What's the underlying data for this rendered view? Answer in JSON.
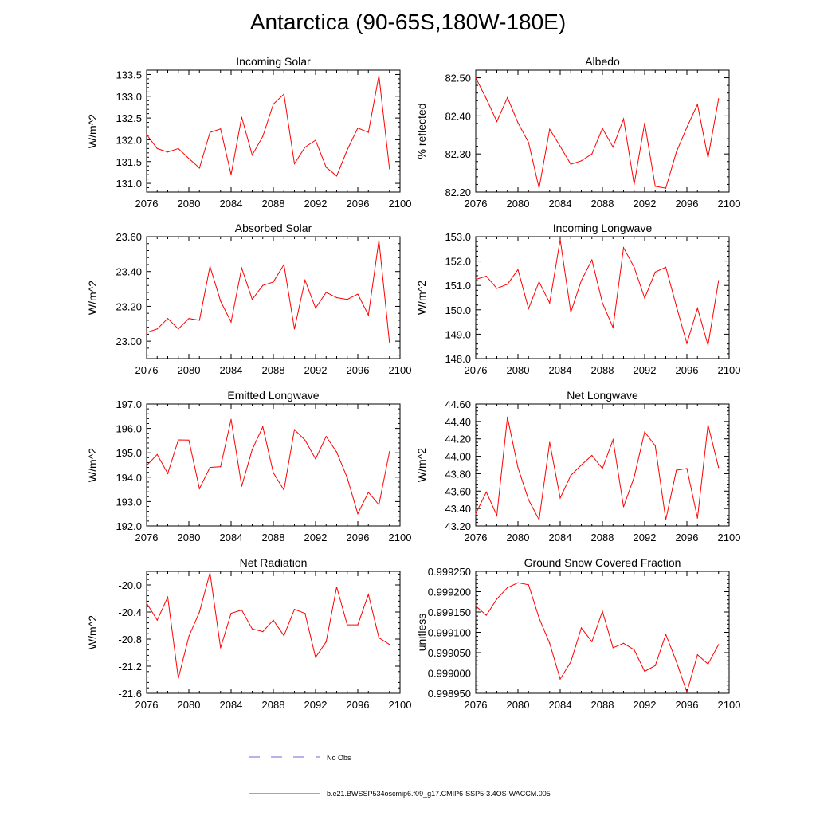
{
  "title": "Antarctica (90-65S,180W-180E)",
  "colors": {
    "model": "#ff0000",
    "obs": "#6a6ad0",
    "axis": "#000000"
  },
  "legend": {
    "obs_label": "No Obs",
    "model_label": "b.e21.BWSSP534oscmip6.f09_g17.CMIP6-SSP5-3.4OS-WACCM.005"
  },
  "chart_data": [
    {
      "type": "line",
      "title": "Incoming Solar",
      "ylabel": "W/m^2",
      "xlim": [
        2076,
        2100
      ],
      "ylim": [
        130.8,
        133.6
      ],
      "xticks": [
        "2076",
        "2080",
        "2084",
        "2088",
        "2092",
        "2096",
        "2100"
      ],
      "yticks": [
        "131.0",
        "131.5",
        "132.0",
        "132.5",
        "133.0",
        "133.5"
      ],
      "x": [
        2076,
        2077,
        2078,
        2079,
        2080,
        2081,
        2082,
        2083,
        2084,
        2085,
        2086,
        2087,
        2088,
        2089,
        2090,
        2091,
        2092,
        2093,
        2094,
        2095,
        2096,
        2097,
        2098,
        2099
      ],
      "series": [
        {
          "name": "b.e21.BWSSP534oscmip6.f09_g17.CMIP6-SSP5-3.4OS-WACCM.005",
          "values": [
            132.12,
            131.8,
            131.72,
            131.8,
            131.57,
            131.35,
            132.17,
            132.25,
            131.2,
            132.52,
            131.65,
            132.08,
            132.82,
            133.05,
            131.45,
            131.83,
            131.99,
            131.37,
            131.17,
            131.77,
            132.27,
            132.17,
            133.48,
            131.33
          ]
        }
      ]
    },
    {
      "type": "line",
      "title": "Albedo",
      "ylabel": "% reflected",
      "xlim": [
        2076,
        2100
      ],
      "ylim": [
        82.2,
        82.52
      ],
      "xticks": [
        "2076",
        "2080",
        "2084",
        "2088",
        "2092",
        "2096",
        "2100"
      ],
      "yticks": [
        "82.20",
        "82.30",
        "82.40",
        "82.50"
      ],
      "x": [
        2076,
        2077,
        2078,
        2079,
        2080,
        2081,
        2082,
        2083,
        2084,
        2085,
        2086,
        2087,
        2088,
        2089,
        2090,
        2091,
        2092,
        2093,
        2094,
        2095,
        2096,
        2097,
        2098,
        2099
      ],
      "series": [
        {
          "name": "b.e21.BWSSP534oscmip6.f09_g17.CMIP6-SSP5-3.4OS-WACCM.005",
          "values": [
            82.5,
            82.445,
            82.385,
            82.448,
            82.382,
            82.33,
            82.21,
            82.365,
            82.32,
            82.273,
            82.282,
            82.3,
            82.367,
            82.318,
            82.392,
            82.22,
            82.381,
            82.215,
            82.21,
            82.305,
            82.37,
            82.43,
            82.29,
            82.445
          ]
        }
      ]
    },
    {
      "type": "line",
      "title": "Absorbed Solar",
      "ylabel": "W/m^2",
      "xlim": [
        2076,
        2100
      ],
      "ylim": [
        22.9,
        23.6
      ],
      "xticks": [
        "2076",
        "2080",
        "2084",
        "2088",
        "2092",
        "2096",
        "2100"
      ],
      "yticks": [
        "23.00",
        "23.20",
        "23.40",
        "23.60"
      ],
      "x": [
        2076,
        2077,
        2078,
        2079,
        2080,
        2081,
        2082,
        2083,
        2084,
        2085,
        2086,
        2087,
        2088,
        2089,
        2090,
        2091,
        2092,
        2093,
        2094,
        2095,
        2096,
        2097,
        2098,
        2099
      ],
      "series": [
        {
          "name": "b.e21.BWSSP534oscmip6.f09_g17.CMIP6-SSP5-3.4OS-WACCM.005",
          "values": [
            23.05,
            23.07,
            23.13,
            23.07,
            23.13,
            23.12,
            23.43,
            23.23,
            23.11,
            23.42,
            23.24,
            23.32,
            23.34,
            23.44,
            23.07,
            23.35,
            23.19,
            23.28,
            23.25,
            23.24,
            23.27,
            23.15,
            23.58,
            22.99
          ]
        }
      ]
    },
    {
      "type": "line",
      "title": "Incoming Longwave",
      "ylabel": "W/m^2",
      "xlim": [
        2076,
        2100
      ],
      "ylim": [
        148.0,
        153.0
      ],
      "xticks": [
        "2076",
        "2080",
        "2084",
        "2088",
        "2092",
        "2096",
        "2100"
      ],
      "yticks": [
        "148.0",
        "149.0",
        "150.0",
        "151.0",
        "152.0",
        "153.0"
      ],
      "x": [
        2076,
        2077,
        2078,
        2079,
        2080,
        2081,
        2082,
        2083,
        2084,
        2085,
        2086,
        2087,
        2088,
        2089,
        2090,
        2091,
        2092,
        2093,
        2094,
        2095,
        2096,
        2097,
        2098,
        2099
      ],
      "series": [
        {
          "name": "b.e21.BWSSP534oscmip6.f09_g17.CMIP6-SSP5-3.4OS-WACCM.005",
          "values": [
            151.25,
            151.38,
            150.88,
            151.05,
            151.65,
            150.05,
            151.15,
            150.28,
            152.88,
            149.9,
            151.2,
            152.05,
            150.28,
            149.27,
            152.55,
            151.75,
            150.48,
            151.55,
            151.75,
            150.15,
            148.62,
            150.07,
            148.55,
            151.2
          ]
        }
      ]
    },
    {
      "type": "line",
      "title": "Emitted Longwave",
      "ylabel": "W/m^2",
      "xlim": [
        2076,
        2100
      ],
      "ylim": [
        192.0,
        197.0
      ],
      "xticks": [
        "2076",
        "2080",
        "2084",
        "2088",
        "2092",
        "2096",
        "2100"
      ],
      "yticks": [
        "192.0",
        "193.0",
        "194.0",
        "195.0",
        "196.0",
        "197.0"
      ],
      "x": [
        2076,
        2077,
        2078,
        2079,
        2080,
        2081,
        2082,
        2083,
        2084,
        2085,
        2086,
        2087,
        2088,
        2089,
        2090,
        2091,
        2092,
        2093,
        2094,
        2095,
        2096,
        2097,
        2098,
        2099
      ],
      "series": [
        {
          "name": "b.e21.BWSSP534oscmip6.f09_g17.CMIP6-SSP5-3.4OS-WACCM.005",
          "values": [
            194.48,
            194.93,
            194.15,
            195.53,
            195.52,
            193.53,
            194.4,
            194.43,
            196.37,
            193.63,
            195.13,
            196.07,
            194.18,
            193.47,
            195.95,
            195.52,
            194.75,
            195.67,
            195.03,
            193.97,
            192.5,
            193.38,
            192.87,
            195.05
          ]
        }
      ]
    },
    {
      "type": "line",
      "title": "Net Longwave",
      "ylabel": "W/m^2",
      "xlim": [
        2076,
        2100
      ],
      "ylim": [
        43.2,
        44.6
      ],
      "xticks": [
        "2076",
        "2080",
        "2084",
        "2088",
        "2092",
        "2096",
        "2100"
      ],
      "yticks": [
        "43.20",
        "43.40",
        "43.60",
        "43.80",
        "44.00",
        "44.20",
        "44.40",
        "44.60"
      ],
      "x": [
        2076,
        2077,
        2078,
        2079,
        2080,
        2081,
        2082,
        2083,
        2084,
        2085,
        2086,
        2087,
        2088,
        2089,
        2090,
        2091,
        2092,
        2093,
        2094,
        2095,
        2096,
        2097,
        2098,
        2099
      ],
      "series": [
        {
          "name": "b.e21.BWSSP534oscmip6.f09_g17.CMIP6-SSP5-3.4OS-WACCM.005",
          "values": [
            43.34,
            43.59,
            43.32,
            44.45,
            43.87,
            43.5,
            43.27,
            44.16,
            43.52,
            43.78,
            43.9,
            44.01,
            43.86,
            44.19,
            43.42,
            43.76,
            44.28,
            44.12,
            43.27,
            43.84,
            43.86,
            43.29,
            44.36,
            43.87
          ]
        }
      ]
    },
    {
      "type": "line",
      "title": "Net Radiation",
      "ylabel": "W/m^2",
      "xlim": [
        2076,
        2100
      ],
      "ylim": [
        -21.6,
        -19.8
      ],
      "xticks": [
        "2076",
        "2080",
        "2084",
        "2088",
        "2092",
        "2096",
        "2100"
      ],
      "yticks": [
        "-21.6",
        "-21.2",
        "-20.8",
        "-20.4",
        "-20.0"
      ],
      "x": [
        2076,
        2077,
        2078,
        2079,
        2080,
        2081,
        2082,
        2083,
        2084,
        2085,
        2086,
        2087,
        2088,
        2089,
        2090,
        2091,
        2092,
        2093,
        2094,
        2095,
        2096,
        2097,
        2098,
        2099
      ],
      "series": [
        {
          "name": "b.e21.BWSSP534oscmip6.f09_g17.CMIP6-SSP5-3.4OS-WACCM.005",
          "values": [
            -20.27,
            -20.52,
            -20.18,
            -21.38,
            -20.76,
            -20.4,
            -19.82,
            -20.93,
            -20.42,
            -20.37,
            -20.65,
            -20.69,
            -20.52,
            -20.75,
            -20.36,
            -20.42,
            -21.07,
            -20.84,
            -20.03,
            -20.59,
            -20.59,
            -20.14,
            -20.78,
            -20.88
          ]
        }
      ]
    },
    {
      "type": "line",
      "title": "Ground Snow Covered Fraction",
      "ylabel": "unitless",
      "xlim": [
        2076,
        2100
      ],
      "ylim": [
        0.99895,
        0.99925
      ],
      "xticks": [
        "2076",
        "2080",
        "2084",
        "2088",
        "2092",
        "2096",
        "2100"
      ],
      "yticks": [
        "0.998950",
        "0.999000",
        "0.999050",
        "0.999100",
        "0.999150",
        "0.999200",
        "0.999250"
      ],
      "x": [
        2076,
        2077,
        2078,
        2079,
        2080,
        2081,
        2082,
        2083,
        2084,
        2085,
        2086,
        2087,
        2088,
        2089,
        2090,
        2091,
        2092,
        2093,
        2094,
        2095,
        2096,
        2097,
        2098,
        2099
      ],
      "series": [
        {
          "name": "b.e21.BWSSP534oscmip6.f09_g17.CMIP6-SSP5-3.4OS-WACCM.005",
          "values": [
            0.999165,
            0.999142,
            0.999182,
            0.99921,
            0.999222,
            0.999217,
            0.999135,
            0.999073,
            0.998985,
            0.999027,
            0.999111,
            0.999077,
            0.999152,
            0.999062,
            0.999073,
            0.999057,
            0.999004,
            0.999018,
            0.999095,
            0.999028,
            0.998953,
            0.999045,
            0.999022,
            0.99907
          ]
        }
      ]
    }
  ]
}
